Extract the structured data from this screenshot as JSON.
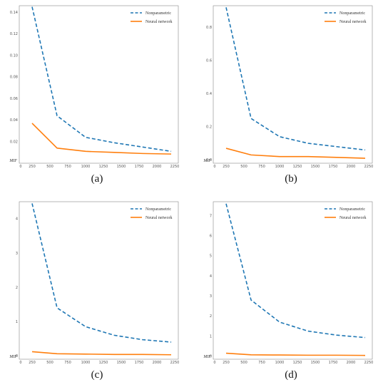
{
  "captions": [
    "(a)",
    "(b)",
    "(c)",
    "(d)"
  ],
  "chart_data": [
    {
      "type": "line",
      "x": [
        250,
        600,
        1000,
        1400,
        1800,
        2200
      ],
      "xticks": [
        "250",
        "500",
        "750",
        "1000",
        "1250",
        "1500",
        "1750",
        "2000",
        "2250"
      ],
      "xtick_values": [
        250,
        500,
        750,
        1000,
        1250,
        1500,
        1750,
        2000,
        2250
      ],
      "xlim": [
        70,
        2300
      ],
      "ylim": [
        0,
        0.146
      ],
      "yticks": [
        "0.02",
        "0.04",
        "0.06",
        "0.08",
        "0.10",
        "0.12",
        "0.14"
      ],
      "ytick_values": [
        0.02,
        0.04,
        0.06,
        0.08,
        0.1,
        0.12,
        0.14
      ],
      "origin_tick": "0",
      "ylabel": "MIF",
      "legend": "top-right",
      "series": [
        {
          "name": "Nonparametric",
          "values": [
            0.145,
            0.044,
            0.024,
            0.019,
            0.015,
            0.011
          ],
          "color": "#1f77b4",
          "dash": true
        },
        {
          "name": "Neural network",
          "values": [
            0.037,
            0.014,
            0.011,
            0.01,
            0.009,
            0.0085
          ],
          "color": "#ff7f0e",
          "dash": false
        }
      ]
    },
    {
      "type": "line",
      "x": [
        250,
        600,
        1000,
        1400,
        1800,
        2200
      ],
      "xticks": [
        "250",
        "500",
        "750",
        "1000",
        "1250",
        "1500",
        "1750",
        "2000",
        "2250"
      ],
      "xtick_values": [
        250,
        500,
        750,
        1000,
        1250,
        1500,
        1750,
        2000,
        2250
      ],
      "xlim": [
        70,
        2300
      ],
      "ylim": [
        -0.02,
        0.93
      ],
      "yticks": [
        "0.0",
        "0.2",
        "0.4",
        "0.6",
        "0.8"
      ],
      "ytick_values": [
        0.0,
        0.2,
        0.4,
        0.6,
        0.8
      ],
      "origin_tick": "0",
      "ylabel": "MIF",
      "legend": "top-right",
      "series": [
        {
          "name": "Nonparametric",
          "values": [
            0.92,
            0.25,
            0.14,
            0.1,
            0.08,
            0.06
          ],
          "color": "#1f77b4",
          "dash": true
        },
        {
          "name": "Neural network",
          "values": [
            0.07,
            0.03,
            0.02,
            0.02,
            0.015,
            0.01
          ],
          "color": "#ff7f0e",
          "dash": false
        }
      ]
    },
    {
      "type": "line",
      "x": [
        250,
        600,
        1000,
        1400,
        1800,
        2200
      ],
      "xticks": [
        "250",
        "500",
        "750",
        "1000",
        "1250",
        "1500",
        "1750",
        "2000",
        "2250"
      ],
      "xtick_values": [
        250,
        500,
        750,
        1000,
        1250,
        1500,
        1750,
        2000,
        2250
      ],
      "xlim": [
        70,
        2300
      ],
      "ylim": [
        -0.1,
        4.5
      ],
      "yticks": [
        "0",
        "1",
        "2",
        "3",
        "4"
      ],
      "ytick_values": [
        0,
        1,
        2,
        3,
        4
      ],
      "origin_tick": "0",
      "ylabel": "MIF",
      "legend": "top-right",
      "series": [
        {
          "name": "Nonparametric",
          "values": [
            4.45,
            1.4,
            0.85,
            0.6,
            0.47,
            0.4
          ],
          "color": "#1f77b4",
          "dash": true
        },
        {
          "name": "Neural network",
          "values": [
            0.12,
            0.06,
            0.05,
            0.04,
            0.04,
            0.03
          ],
          "color": "#ff7f0e",
          "dash": false
        }
      ]
    },
    {
      "type": "line",
      "x": [
        250,
        600,
        1000,
        1400,
        1800,
        2200
      ],
      "xticks": [
        "250",
        "500",
        "750",
        "1000",
        "1250",
        "1500",
        "1750",
        "2000",
        "2250"
      ],
      "xtick_values": [
        250,
        500,
        750,
        1000,
        1250,
        1500,
        1750,
        2000,
        2250
      ],
      "xlim": [
        70,
        2300
      ],
      "ylim": [
        -0.15,
        7.7
      ],
      "yticks": [
        "0",
        "1",
        "2",
        "3",
        "4",
        "5",
        "6",
        "7"
      ],
      "ytick_values": [
        0,
        1,
        2,
        3,
        4,
        5,
        6,
        7
      ],
      "origin_tick": "0",
      "ylabel": "MIF",
      "legend": "top-right",
      "series": [
        {
          "name": "Nonparametric",
          "values": [
            7.6,
            2.8,
            1.7,
            1.25,
            1.05,
            0.93
          ],
          "color": "#1f77b4",
          "dash": true
        },
        {
          "name": "Neural network",
          "values": [
            0.15,
            0.07,
            0.06,
            0.05,
            0.05,
            0.04
          ],
          "color": "#ff7f0e",
          "dash": false
        }
      ]
    }
  ]
}
